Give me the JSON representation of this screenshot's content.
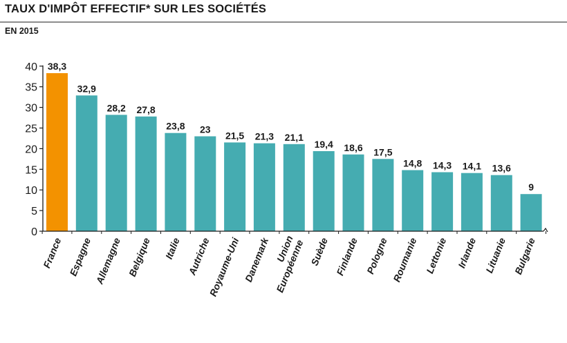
{
  "header": {
    "title": "TAUX D'IMPÔT EFFECTIF* SUR LES SOCIÉTÉS",
    "subtitle": "EN 2015"
  },
  "colors": {
    "highlight": "#f39200",
    "bar": "#45acb1",
    "axis": "#1a1a1a"
  },
  "chart_data": {
    "type": "bar",
    "title": "TAUX D'IMPÔT EFFECTIF* SUR LES SOCIÉTÉS",
    "subtitle": "EN 2015",
    "categories": [
      "France",
      "Espagne",
      "Allemagne",
      "Belgique",
      "Italie",
      "Autriche",
      "Royaume-Uni",
      "Danemark",
      "Union Européenne",
      "Suède",
      "Finlande",
      "Pologne",
      "Roumanie",
      "Lettonie",
      "Irlande",
      "Lituanie",
      "Bulgarie"
    ],
    "category_labels": [
      [
        "France"
      ],
      [
        "Espagne"
      ],
      [
        "Allemagne"
      ],
      [
        "Belgique"
      ],
      [
        "Italie"
      ],
      [
        "Autriche"
      ],
      [
        "Royaume-Uni"
      ],
      [
        "Danemark"
      ],
      [
        "Union",
        "Européenne"
      ],
      [
        "Suède"
      ],
      [
        "Finlande"
      ],
      [
        "Pologne"
      ],
      [
        "Roumanie"
      ],
      [
        "Lettonie"
      ],
      [
        "Irlande"
      ],
      [
        "Lituanie"
      ],
      [
        "Bulgarie"
      ]
    ],
    "values": [
      38.3,
      32.9,
      28.2,
      27.8,
      23.8,
      23,
      21.5,
      21.3,
      21.1,
      19.4,
      18.6,
      17.5,
      14.8,
      14.3,
      14.1,
      13.6,
      9
    ],
    "value_labels": [
      "38,3",
      "32,9",
      "28,2",
      "27,8",
      "23,8",
      "23",
      "21,5",
      "21,3",
      "21,1",
      "19,4",
      "18,6",
      "17,5",
      "14,8",
      "14,3",
      "14,1",
      "13,6",
      "9"
    ],
    "highlight_index": 0,
    "ylim": [
      0,
      40
    ],
    "yticks": [
      0,
      5,
      10,
      15,
      20,
      25,
      30,
      35,
      40
    ],
    "grid": false,
    "legend": "none"
  }
}
